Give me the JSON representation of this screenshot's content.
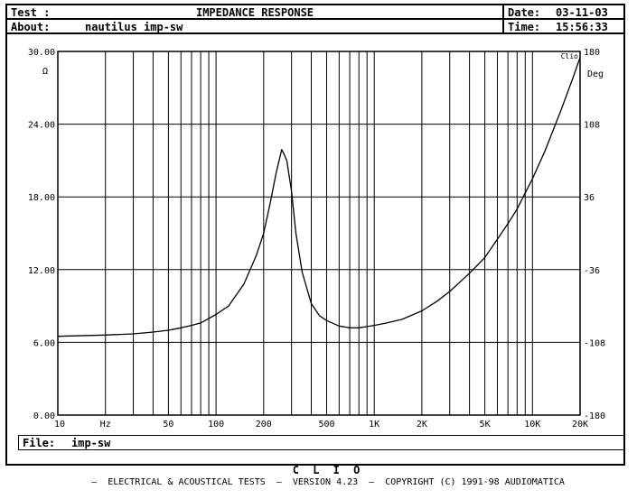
{
  "header": {
    "test_label": "Test :",
    "title": "IMPEDANCE RESPONSE",
    "about_label": "About:",
    "about_value": "nautilus imp-sw",
    "date_label": "Date:",
    "date_value": "03-11-03",
    "time_label": "Time:",
    "time_value": "15:56:33"
  },
  "file": {
    "label": "File:",
    "value": "imp-sw"
  },
  "footer": {
    "brand": "C L I O",
    "text": "–  ELECTRICAL & ACOUSTICAL TESTS  –  VERSION 4.23  –  COPYRIGHT (C) 1991-98 AUDIOMATICA"
  },
  "chart_data": {
    "type": "line",
    "log_x": true,
    "xlim": [
      10,
      20000
    ],
    "ylim": [
      0,
      30
    ],
    "y2lim": [
      -180,
      180
    ],
    "grid": true,
    "corner_label": "Clio",
    "ylabel": "Ω",
    "y2label": "Deg",
    "xunit": "Hz",
    "y_ticks": [
      {
        "value": 0,
        "label": "0.00"
      },
      {
        "value": 6,
        "label": "6.00"
      },
      {
        "value": 12,
        "label": "12.00"
      },
      {
        "value": 18,
        "label": "18.00"
      },
      {
        "value": 24,
        "label": "24.00"
      },
      {
        "value": 30,
        "label": "30.00"
      }
    ],
    "y2_ticks": [
      {
        "value": -180,
        "label": "-180"
      },
      {
        "value": -108,
        "label": "-108"
      },
      {
        "value": -36,
        "label": "-36"
      },
      {
        "value": 36,
        "label": "36"
      },
      {
        "value": 108,
        "label": "108"
      },
      {
        "value": 180,
        "label": "180"
      }
    ],
    "x_ticks": [
      {
        "value": 10,
        "label": "10"
      },
      {
        "value": 50,
        "label": "50"
      },
      {
        "value": 100,
        "label": "100"
      },
      {
        "value": 200,
        "label": "200"
      },
      {
        "value": 500,
        "label": "500"
      },
      {
        "value": 1000,
        "label": "1K"
      },
      {
        "value": 2000,
        "label": "2K"
      },
      {
        "value": 5000,
        "label": "5K"
      },
      {
        "value": 10000,
        "label": "10K"
      },
      {
        "value": 20000,
        "label": "20K"
      }
    ],
    "series": [
      {
        "x": [
          10,
          20,
          30,
          40,
          50,
          60,
          70,
          80,
          100,
          120,
          150,
          180,
          200,
          220,
          240,
          260,
          270,
          280,
          300,
          320,
          350,
          400,
          450,
          500,
          600,
          700,
          800,
          900,
          1000,
          1200,
          1500,
          2000,
          2500,
          3000,
          4000,
          5000,
          6000,
          7000,
          8000,
          10000,
          12000,
          15000,
          18000,
          20000
        ],
        "y": [
          6.5,
          6.6,
          6.7,
          6.85,
          7.0,
          7.2,
          7.4,
          7.6,
          8.3,
          9.0,
          10.8,
          13.2,
          15.0,
          17.5,
          20.0,
          21.9,
          21.5,
          21.0,
          18.5,
          15.0,
          11.8,
          9.2,
          8.2,
          7.8,
          7.35,
          7.2,
          7.2,
          7.3,
          7.4,
          7.6,
          7.9,
          8.6,
          9.4,
          10.2,
          11.7,
          13.0,
          14.5,
          15.8,
          17.0,
          19.5,
          21.8,
          25.0,
          27.8,
          29.5
        ]
      }
    ]
  }
}
